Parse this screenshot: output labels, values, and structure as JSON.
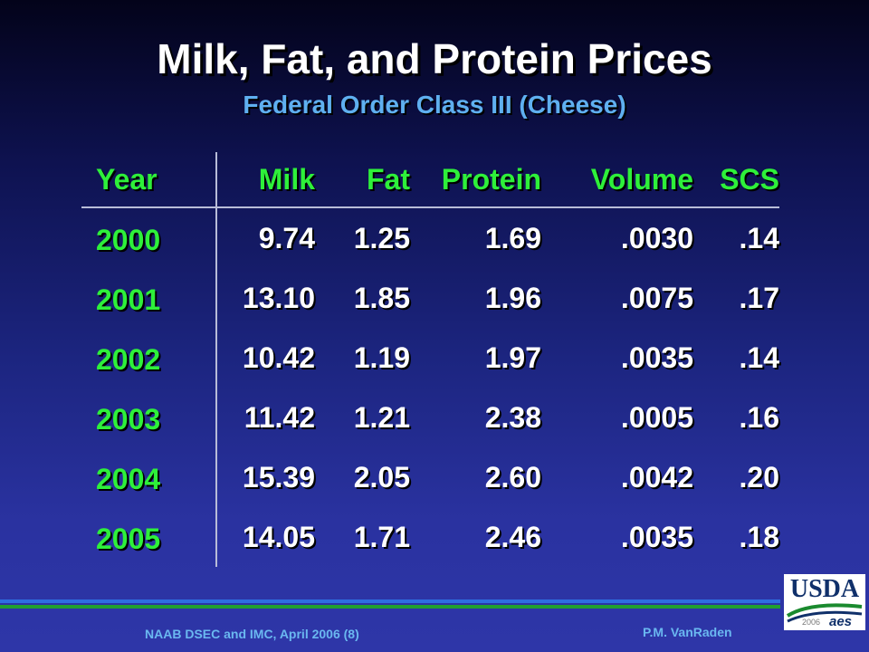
{
  "slide": {
    "title": "Milk, Fat, and Protein Prices",
    "subtitle": "Federal Order Class III (Cheese)"
  },
  "table": {
    "headers": [
      "Year",
      "Milk",
      "Fat",
      "Protein",
      "Volume",
      "SCS"
    ],
    "rows": [
      [
        "2000",
        "9.74",
        "1.25",
        "1.69",
        ".0030",
        ".14"
      ],
      [
        "2001",
        "13.10",
        "1.85",
        "1.96",
        ".0075",
        ".17"
      ],
      [
        "2002",
        "10.42",
        "1.19",
        "1.97",
        ".0035",
        ".14"
      ],
      [
        "2003",
        "11.42",
        "1.21",
        "2.38",
        ".0005",
        ".16"
      ],
      [
        "2004",
        "15.39",
        "2.05",
        "2.60",
        ".0042",
        ".20"
      ],
      [
        "2005",
        "14.05",
        "1.71",
        "2.46",
        ".0035",
        ".18"
      ]
    ]
  },
  "footer": {
    "left": "NAAB DSEC and IMC, April 2006 (8)",
    "right": "P.M. VanRaden"
  },
  "logo": {
    "name": "USDA",
    "year": "2006",
    "mark": "aes"
  },
  "colors": {
    "title": "#ffffff",
    "subtitle": "#5fb0f0",
    "header_and_year": "#2ef03a",
    "values": "#ffffff",
    "rule_blue": "#2e6ee0",
    "rule_green": "#21a030",
    "footer": "#6ab8f0"
  }
}
